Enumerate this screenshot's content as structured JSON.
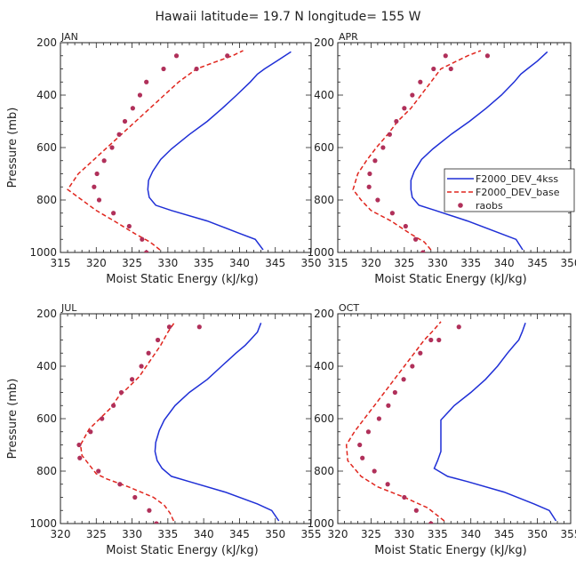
{
  "figure": {
    "title": "Hawaii  latitude= 19.7 N longitude= 155 W"
  },
  "legend": {
    "entries": [
      "F2000_DEV_4kss",
      "F2000_DEV_base",
      "raobs"
    ]
  },
  "colors": {
    "blue": "#1f2fd6",
    "red": "#e0261e",
    "raobs": "#b0305a"
  },
  "chart_data": [
    {
      "type": "line",
      "title": "JAN",
      "xlabel": "Moist Static Energy (kJ/kg)",
      "ylabel": "Pressure (mb)",
      "xlim": [
        315,
        350
      ],
      "ylim": [
        200,
        1000
      ],
      "y_inverted": true,
      "xticks": [
        315,
        320,
        325,
        330,
        335,
        340,
        345,
        350
      ],
      "yticks": [
        200,
        400,
        600,
        800,
        1000
      ],
      "series": [
        {
          "name": "F2000_DEV_4kss",
          "style": "solid",
          "x": [
            343.3,
            342.2,
            339.8,
            335.5,
            330.5,
            328.3,
            327.4,
            327.2,
            327.3,
            327.9,
            329.0,
            330.5,
            333.0,
            335.5,
            337.6,
            339.6,
            341.5,
            342.5,
            343.5,
            345.2,
            347.2
          ],
          "y": [
            990,
            950,
            925,
            880,
            840,
            820,
            790,
            760,
            725,
            690,
            645,
            605,
            550,
            500,
            450,
            400,
            350,
            320,
            300,
            270,
            235
          ]
        },
        {
          "name": "F2000_DEV_base",
          "style": "dashed",
          "x": [
            328.9,
            327.5,
            325.5,
            322.5,
            320.0,
            318.0,
            316.0,
            317.5,
            319.5,
            321.5,
            323.5,
            325.5,
            327.5,
            329.5,
            331.5,
            334.0,
            336.5,
            339.0,
            340.5
          ],
          "y": [
            990,
            960,
            930,
            880,
            840,
            800,
            760,
            700,
            650,
            600,
            550,
            500,
            450,
            400,
            350,
            300,
            275,
            250,
            230
          ]
        },
        {
          "name": "raobs",
          "style": "markers",
          "x": [
            327.0,
            326.4,
            324.6,
            322.4,
            320.4,
            319.7,
            320.1,
            321.1,
            322.2,
            323.2,
            324.0,
            325.1,
            326.1,
            327.0,
            329.4,
            331.2,
            334.0,
            338.3
          ],
          "y": [
            1000,
            950,
            900,
            850,
            800,
            750,
            700,
            650,
            600,
            550,
            500,
            450,
            400,
            350,
            300,
            250,
            300,
            250
          ]
        }
      ]
    },
    {
      "type": "line",
      "title": "APR",
      "xlabel": "Moist Static Energy (kJ/kg)",
      "ylabel": "",
      "xlim": [
        315,
        350
      ],
      "ylim": [
        200,
        1000
      ],
      "y_inverted": true,
      "xticks": [
        315,
        320,
        325,
        330,
        335,
        340,
        345,
        350
      ],
      "yticks": [
        200,
        400,
        600,
        800,
        1000
      ],
      "series": [
        {
          "name": "F2000_DEV_4kss",
          "style": "solid",
          "x": [
            342.8,
            341.8,
            339.2,
            334.5,
            329.7,
            327.2,
            326.2,
            326.0,
            326.0,
            326.5,
            327.6,
            329.3,
            332.0,
            334.8,
            337.3,
            339.6,
            341.5,
            342.5,
            343.5,
            345.0,
            346.5
          ],
          "y": [
            990,
            950,
            925,
            880,
            840,
            820,
            790,
            760,
            725,
            690,
            645,
            605,
            550,
            500,
            450,
            400,
            350,
            320,
            300,
            270,
            235
          ]
        },
        {
          "name": "F2000_DEV_base",
          "style": "dashed",
          "x": [
            329.0,
            328.0,
            326.0,
            323.0,
            320.0,
            318.5,
            317.3,
            318.0,
            319.3,
            320.8,
            322.5,
            324.0,
            326.0,
            327.5,
            329.0,
            330.5,
            332.5,
            334.5,
            336.5
          ],
          "y": [
            990,
            960,
            930,
            880,
            840,
            800,
            760,
            700,
            650,
            600,
            550,
            500,
            450,
            400,
            350,
            300,
            275,
            250,
            230
          ]
        },
        {
          "name": "raobs",
          "style": "markers",
          "x": [
            327.8,
            326.7,
            325.2,
            323.2,
            321.0,
            319.7,
            319.8,
            320.6,
            321.8,
            322.8,
            323.8,
            325.0,
            326.2,
            327.4,
            329.4,
            331.2,
            332.0,
            337.5
          ],
          "y": [
            1000,
            950,
            900,
            850,
            800,
            750,
            700,
            650,
            600,
            550,
            500,
            450,
            400,
            350,
            300,
            250,
            300,
            250
          ]
        }
      ]
    },
    {
      "type": "line",
      "title": "JUL",
      "xlabel": "Moist Static Energy (kJ/kg)",
      "ylabel": "Pressure (mb)",
      "xlim": [
        320,
        355
      ],
      "ylim": [
        200,
        1000
      ],
      "y_inverted": true,
      "xticks": [
        320,
        325,
        330,
        335,
        340,
        345,
        350,
        355
      ],
      "yticks": [
        200,
        400,
        600,
        800,
        1000
      ],
      "series": [
        {
          "name": "F2000_DEV_4kss",
          "style": "solid",
          "x": [
            350.5,
            349.5,
            347.5,
            343.0,
            338.0,
            335.5,
            334.2,
            333.5,
            333.2,
            333.3,
            333.8,
            334.5,
            336.0,
            338.0,
            340.5,
            342.5,
            344.5,
            345.8,
            346.5,
            347.5,
            348.0
          ],
          "y": [
            990,
            950,
            925,
            880,
            840,
            820,
            790,
            760,
            725,
            690,
            645,
            605,
            550,
            500,
            450,
            400,
            350,
            320,
            300,
            270,
            235
          ]
        },
        {
          "name": "F2000_DEV_base",
          "style": "dashed",
          "x": [
            335.8,
            335.3,
            334.5,
            333.0,
            329.5,
            326.5,
            325.0,
            324.0,
            323.0,
            322.8,
            324.0,
            325.5,
            327.0,
            328.0,
            329.5,
            331.0,
            332.5,
            334.0,
            335.0,
            336.0
          ],
          "y": [
            990,
            960,
            930,
            900,
            860,
            830,
            810,
            775,
            740,
            700,
            640,
            600,
            560,
            520,
            480,
            440,
            380,
            320,
            270,
            230
          ]
        },
        {
          "name": "raobs",
          "style": "markers",
          "x": [
            333.4,
            332.4,
            330.4,
            328.3,
            325.3,
            322.7,
            322.6,
            324.2,
            325.8,
            327.4,
            328.5,
            330.0,
            331.3,
            332.3,
            333.6,
            335.2,
            339.4
          ],
          "y": [
            1000,
            950,
            900,
            850,
            800,
            750,
            700,
            650,
            600,
            550,
            500,
            450,
            400,
            350,
            300,
            250,
            250
          ]
        }
      ]
    },
    {
      "type": "line",
      "title": "OCT",
      "xlabel": "Moist Static Energy (kJ/kg)",
      "ylabel": "",
      "xlim": [
        320,
        355
      ],
      "ylim": [
        200,
        1000
      ],
      "y_inverted": true,
      "xticks": [
        320,
        325,
        330,
        335,
        340,
        345,
        350,
        355
      ],
      "yticks": [
        200,
        400,
        600,
        800,
        1000
      ],
      "series": [
        {
          "name": "F2000_DEV_4kss",
          "style": "solid",
          "x": [
            352.8,
            351.8,
            349.5,
            345.0,
            339.5,
            336.5,
            334.5,
            335.0,
            335.5,
            335.5,
            335.5,
            335.5,
            337.5,
            340.0,
            342.2,
            344.0,
            345.5,
            346.5,
            347.2,
            347.7,
            348.2
          ],
          "y": [
            990,
            950,
            925,
            880,
            840,
            820,
            790,
            760,
            725,
            690,
            645,
            605,
            550,
            500,
            450,
            400,
            350,
            320,
            300,
            270,
            235
          ]
        },
        {
          "name": "F2000_DEV_base",
          "style": "dashed",
          "x": [
            336.0,
            335.0,
            333.5,
            330.0,
            326.0,
            323.5,
            321.5,
            321.3,
            322.5,
            324.0,
            325.5,
            327.0,
            328.5,
            330.0,
            331.5,
            333.0,
            334.5,
            335.5
          ],
          "y": [
            990,
            970,
            940,
            900,
            860,
            820,
            760,
            700,
            650,
            600,
            550,
            500,
            450,
            400,
            350,
            300,
            260,
            230
          ]
        },
        {
          "name": "raobs",
          "style": "markers",
          "x": [
            334.0,
            331.8,
            330.0,
            327.5,
            325.5,
            323.7,
            323.3,
            324.6,
            326.2,
            327.6,
            328.6,
            329.9,
            331.2,
            332.4,
            334.0,
            335.2,
            338.2
          ],
          "y": [
            1000,
            950,
            900,
            850,
            800,
            750,
            700,
            650,
            600,
            550,
            500,
            450,
            400,
            350,
            300,
            300,
            250
          ]
        }
      ]
    }
  ]
}
